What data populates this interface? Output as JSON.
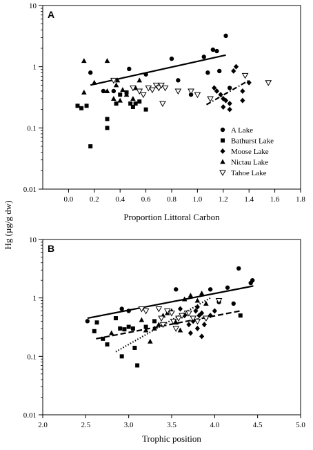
{
  "figure": {
    "ylabel_shared": "Hg (µg/g dw)"
  },
  "chart_data": [
    {
      "panel": "A",
      "type": "scatter",
      "xlabel": "Proportion Littoral Carbon",
      "ylabel": "Hg (µg/g dw)",
      "xlim": [
        -0.2,
        1.8
      ],
      "ylim": [
        0.01,
        10
      ],
      "yscale": "log",
      "xticks": [
        "0.0",
        "0.2",
        "0.4",
        "0.6",
        "0.8",
        "1.0",
        "1.2",
        "1.4",
        "1.6",
        "1.8"
      ],
      "yticks": [
        "0.01",
        "0.1",
        "1",
        "10"
      ],
      "grid": false,
      "legend_position": "bottom-right",
      "series": [
        {
          "name": "A Lake",
          "marker": "circle",
          "points": [
            [
              0.17,
              0.8
            ],
            [
              0.27,
              0.4
            ],
            [
              0.35,
              0.4
            ],
            [
              0.47,
              0.92
            ],
            [
              0.6,
              0.75
            ],
            [
              0.8,
              1.35
            ],
            [
              0.85,
              0.6
            ],
            [
              0.95,
              0.35
            ],
            [
              1.05,
              1.45
            ],
            [
              1.08,
              0.8
            ],
            [
              1.12,
              1.9
            ],
            [
              1.15,
              1.8
            ],
            [
              1.17,
              0.85
            ],
            [
              1.22,
              3.2
            ],
            [
              1.25,
              0.45
            ]
          ]
        },
        {
          "name": "Bathurst Lake",
          "marker": "square",
          "points": [
            [
              0.07,
              0.23
            ],
            [
              0.1,
              0.21
            ],
            [
              0.14,
              0.23
            ],
            [
              0.17,
              0.05
            ],
            [
              0.3,
              0.1
            ],
            [
              0.3,
              0.14
            ],
            [
              0.37,
              0.25
            ],
            [
              0.4,
              0.35
            ],
            [
              0.45,
              0.38
            ],
            [
              0.48,
              0.25
            ],
            [
              0.52,
              0.25
            ],
            [
              0.55,
              0.27
            ],
            [
              0.6,
              0.2
            ],
            [
              0.5,
              0.22
            ]
          ]
        },
        {
          "name": "Moose Lake",
          "marker": "diamond",
          "points": [
            [
              1.13,
              0.45
            ],
            [
              1.15,
              0.4
            ],
            [
              1.18,
              0.35
            ],
            [
              1.2,
              0.3
            ],
            [
              1.22,
              0.28
            ],
            [
              1.25,
              0.25
            ],
            [
              1.2,
              0.22
            ],
            [
              1.28,
              0.85
            ],
            [
              1.3,
              1.0
            ],
            [
              1.35,
              0.4
            ],
            [
              1.35,
              0.28
            ],
            [
              1.4,
              0.55
            ],
            [
              1.25,
              0.2
            ]
          ]
        },
        {
          "name": "Nictau Lake",
          "marker": "triangle-up",
          "points": [
            [
              0.12,
              1.25
            ],
            [
              0.12,
              0.38
            ],
            [
              0.2,
              0.55
            ],
            [
              0.3,
              1.25
            ],
            [
              0.35,
              0.3
            ],
            [
              0.37,
              0.5
            ],
            [
              0.38,
              0.6
            ],
            [
              0.4,
              0.28
            ],
            [
              0.42,
              0.42
            ],
            [
              0.5,
              0.3
            ],
            [
              0.52,
              0.45
            ],
            [
              0.55,
              0.6
            ],
            [
              0.3,
              0.4
            ],
            [
              0.45,
              0.35
            ]
          ]
        },
        {
          "name": "Tahoe Lake",
          "marker": "triangle-down",
          "points": [
            [
              0.35,
              0.6
            ],
            [
              0.5,
              0.45
            ],
            [
              0.55,
              0.4
            ],
            [
              0.58,
              0.35
            ],
            [
              0.62,
              0.45
            ],
            [
              0.65,
              0.42
            ],
            [
              0.68,
              0.5
            ],
            [
              0.7,
              0.45
            ],
            [
              0.72,
              0.5
            ],
            [
              0.75,
              0.45
            ],
            [
              0.73,
              0.25
            ],
            [
              0.85,
              0.4
            ],
            [
              0.95,
              0.4
            ],
            [
              1.0,
              0.35
            ],
            [
              1.1,
              0.3
            ],
            [
              1.37,
              0.72
            ],
            [
              1.55,
              0.55
            ]
          ]
        }
      ],
      "fits": [
        {
          "series": "A Lake",
          "style": "solid",
          "x": [
            0.17,
            1.22
          ],
          "y": [
            0.5,
            1.55
          ]
        },
        {
          "series": "Moose Lake",
          "style": "dashdot",
          "x": [
            1.07,
            1.4
          ],
          "y": [
            0.24,
            0.6
          ]
        }
      ]
    },
    {
      "panel": "B",
      "type": "scatter",
      "xlabel": "Trophic position",
      "ylabel": "Hg (µg/g dw)",
      "xlim": [
        2.0,
        5.0
      ],
      "ylim": [
        0.01,
        10
      ],
      "yscale": "log",
      "xticks": [
        "2.0",
        "2.5",
        "3.0",
        "3.5",
        "4.0",
        "4.5",
        "5.0"
      ],
      "yticks": [
        "0.01",
        "0.1",
        "1",
        "10"
      ],
      "grid": false,
      "series": [
        {
          "name": "A Lake",
          "marker": "circle",
          "points": [
            [
              2.52,
              0.4
            ],
            [
              2.92,
              0.65
            ],
            [
              3.0,
              0.6
            ],
            [
              3.55,
              1.4
            ],
            [
              3.95,
              1.4
            ],
            [
              4.05,
              0.85
            ],
            [
              4.15,
              1.5
            ],
            [
              4.22,
              0.8
            ],
            [
              4.28,
              3.2
            ],
            [
              4.42,
              1.8
            ],
            [
              4.44,
              2.0
            ]
          ]
        },
        {
          "name": "Bathurst Lake",
          "marker": "square",
          "points": [
            [
              2.6,
              0.27
            ],
            [
              2.63,
              0.38
            ],
            [
              2.7,
              0.2
            ],
            [
              2.75,
              0.16
            ],
            [
              2.85,
              0.45
            ],
            [
              2.9,
              0.3
            ],
            [
              2.92,
              0.1
            ],
            [
              2.95,
              0.29
            ],
            [
              3.0,
              0.32
            ],
            [
              3.05,
              0.3
            ],
            [
              3.07,
              0.14
            ],
            [
              3.1,
              0.07
            ],
            [
              3.2,
              0.32
            ],
            [
              4.3,
              0.5
            ],
            [
              3.3,
              0.4
            ]
          ]
        },
        {
          "name": "Moose Lake",
          "marker": "diamond",
          "points": [
            [
              3.6,
              0.65
            ],
            [
              3.65,
              0.5
            ],
            [
              3.7,
              0.35
            ],
            [
              3.72,
              0.25
            ],
            [
              3.75,
              0.4
            ],
            [
              3.78,
              0.6
            ],
            [
              3.8,
              0.7
            ],
            [
              3.82,
              0.5
            ],
            [
              3.85,
              0.55
            ],
            [
              3.88,
              0.35
            ],
            [
              3.9,
              0.45
            ],
            [
              3.95,
              0.5
            ],
            [
              4.0,
              0.6
            ],
            [
              3.85,
              0.22
            ],
            [
              3.8,
              0.3
            ]
          ]
        },
        {
          "name": "Nictau Lake",
          "marker": "triangle-up",
          "points": [
            [
              2.8,
              0.25
            ],
            [
              3.15,
              0.42
            ],
            [
              3.2,
              0.28
            ],
            [
              3.25,
              0.18
            ],
            [
              3.3,
              0.3
            ],
            [
              3.35,
              0.35
            ],
            [
              3.4,
              0.5
            ],
            [
              3.45,
              0.55
            ],
            [
              3.5,
              0.6
            ],
            [
              3.55,
              0.38
            ],
            [
              3.6,
              0.28
            ],
            [
              3.65,
              0.95
            ],
            [
              3.72,
              1.1
            ],
            [
              3.8,
              0.9
            ],
            [
              3.85,
              1.2
            ],
            [
              3.9,
              0.8
            ]
          ]
        },
        {
          "name": "Tahoe Lake",
          "marker": "triangle-down",
          "points": [
            [
              3.15,
              0.65
            ],
            [
              3.2,
              0.6
            ],
            [
              3.35,
              0.65
            ],
            [
              3.38,
              0.45
            ],
            [
              3.4,
              0.35
            ],
            [
              3.45,
              0.6
            ],
            [
              3.5,
              0.55
            ],
            [
              3.52,
              0.4
            ],
            [
              3.55,
              0.3
            ],
            [
              3.58,
              0.45
            ],
            [
              3.62,
              0.5
            ],
            [
              3.68,
              0.55
            ],
            [
              3.7,
              0.55
            ],
            [
              3.75,
              0.45
            ],
            [
              3.8,
              0.4
            ],
            [
              3.9,
              0.45
            ],
            [
              4.05,
              0.9
            ]
          ]
        }
      ],
      "fits": [
        {
          "series": "A Lake",
          "style": "solid",
          "x": [
            2.52,
            4.45
          ],
          "y": [
            0.45,
            1.6
          ]
        },
        {
          "series": "Bathurst Lake",
          "style": "dashed",
          "x": [
            2.62,
            4.3
          ],
          "y": [
            0.2,
            0.6
          ]
        },
        {
          "series": "Nictau Lake",
          "style": "dotted",
          "x": [
            2.85,
            3.95
          ],
          "y": [
            0.12,
            1.0
          ]
        }
      ]
    }
  ]
}
